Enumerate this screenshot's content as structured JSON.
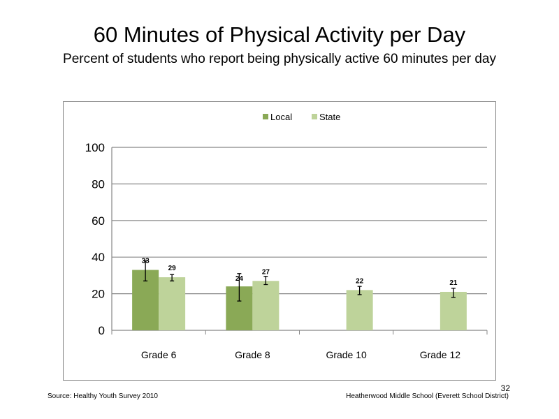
{
  "slide": {
    "title": "60 Minutes of Physical Activity per Day",
    "subtitle": "Percent of students who report being physically active 60 minutes per day",
    "source": "Source: Healthy Youth Survey 2010",
    "school": "Heatherwood Middle School (Everett School District)",
    "page_number": "32"
  },
  "chart_data": {
    "type": "bar",
    "categories": [
      "Grade 6",
      "Grade 8",
      "Grade 10",
      "Grade 12"
    ],
    "series": [
      {
        "name": "Local",
        "color": "#8aa956",
        "values": [
          33,
          24,
          null,
          null
        ],
        "labels": [
          "33",
          "24",
          "",
          ""
        ],
        "error_low": [
          27,
          16,
          null,
          null
        ],
        "error_high": [
          38,
          31,
          null,
          null
        ]
      },
      {
        "name": "State",
        "color": "#bed39a",
        "values": [
          29,
          27,
          22,
          21
        ],
        "labels": [
          "29",
          "27",
          "22",
          "21"
        ],
        "error_low": [
          27,
          25,
          19.5,
          18
        ],
        "error_high": [
          30.5,
          29.5,
          24,
          23
        ]
      }
    ],
    "ylim": [
      0,
      100
    ],
    "yticks": [
      "0",
      "20",
      "40",
      "60",
      "80",
      "100"
    ],
    "grid": true,
    "legend_position": "top-center"
  }
}
